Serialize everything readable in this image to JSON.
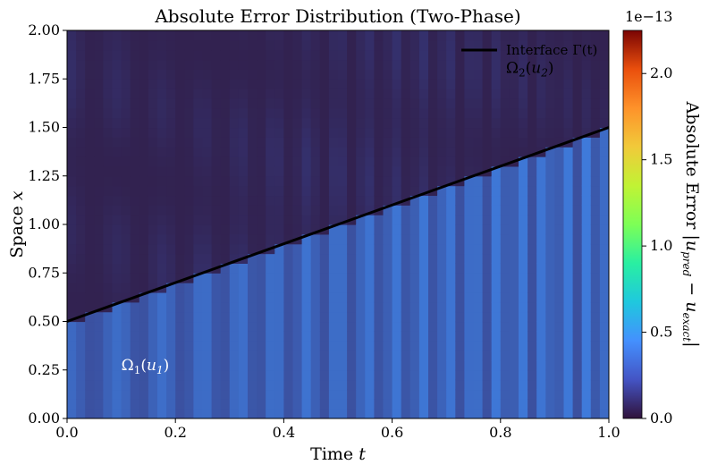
{
  "chart_data": {
    "type": "heatmap",
    "title": "Absolute Error Distribution (Two-Phase)",
    "xlabel": "Time t",
    "ylabel": "Space x",
    "xlim": [
      0.0,
      1.0
    ],
    "ylim": [
      0.0,
      2.0
    ],
    "x_ticks": [
      "0.0",
      "0.2",
      "0.4",
      "0.6",
      "0.8",
      "1.0"
    ],
    "y_ticks": [
      "0.00",
      "0.25",
      "0.50",
      "0.75",
      "1.00",
      "1.25",
      "1.50",
      "1.75",
      "2.00"
    ],
    "colormap": "turbo",
    "colorbar": {
      "label": "Absolute Error |u_pred − u_exact|",
      "offset_label": "1e−13",
      "range": [
        0.0,
        2.25
      ],
      "ticks": [
        "0.0",
        "0.5",
        "1.0",
        "1.5",
        "2.0"
      ]
    },
    "interface_line": {
      "legend_label": "Interface Γ(t)",
      "points": [
        [
          0.0,
          0.5
        ],
        [
          1.0,
          1.5
        ]
      ],
      "color": "#000000"
    },
    "annotations": [
      {
        "text": "Ω2(u2)",
        "base": "Ω",
        "sub": "2",
        "var": "u",
        "varsub": "2",
        "x": 0.81,
        "y": 1.78,
        "color": "#000000"
      },
      {
        "text": "Ω1(u1)",
        "base": "Ω",
        "sub": "1",
        "var": "u",
        "varsub": "1",
        "x": 0.1,
        "y": 0.25,
        "color": "#ffffff"
      }
    ],
    "error_field_summary": {
      "region_omega1_level": [
        0.2,
        0.6
      ],
      "region_omega2_level": [
        0.05,
        0.3
      ],
      "max_level_near": [
        1.0,
        0.0
      ]
    }
  }
}
